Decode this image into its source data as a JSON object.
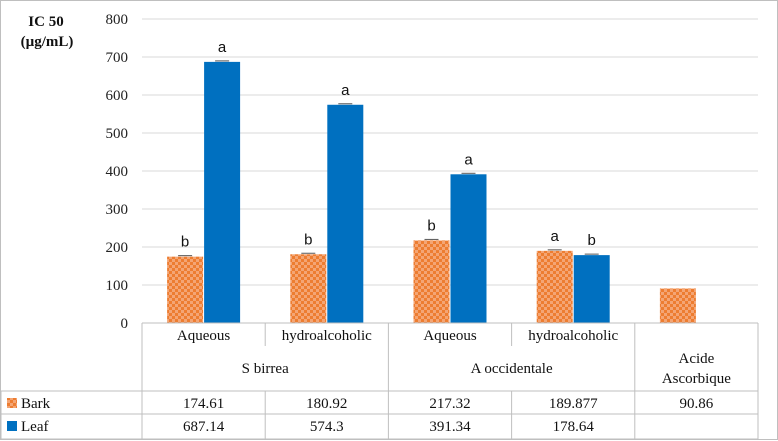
{
  "chart_data": {
    "type": "bar",
    "ylabel_line1": "IC 50",
    "ylabel_line2": "(µg/mL)",
    "ylim": [
      0,
      800
    ],
    "yticks": [
      "0",
      "100",
      "200",
      "300",
      "400",
      "500",
      "600",
      "700",
      "800"
    ],
    "categories": [
      "Aqueous",
      "hydroalcoholic",
      "Aqueous",
      "hydroalcoholic",
      ""
    ],
    "groups": [
      "S birrea",
      "A occidentale",
      "Acide Ascorbique"
    ],
    "series": [
      {
        "name": "Bark",
        "values": [
          174.61,
          180.92,
          217.32,
          189.877,
          90.86
        ],
        "labels": [
          "174.61",
          "180.92",
          "217.32",
          "189.877",
          "90.86"
        ],
        "color": "#ed7d31",
        "pattern": "checker",
        "annotations": [
          "b",
          "b",
          "b",
          "a",
          ""
        ]
      },
      {
        "name": "Leaf",
        "values": [
          687.14,
          574.3,
          391.34,
          178.64,
          null
        ],
        "labels": [
          "687.14",
          "574.3",
          "391.34",
          "178.64",
          ""
        ],
        "color": "#0070c0",
        "pattern": "solid",
        "annotations": [
          "a",
          "a",
          "a",
          "b",
          ""
        ]
      }
    ],
    "grid": true,
    "legend": "table-left"
  }
}
